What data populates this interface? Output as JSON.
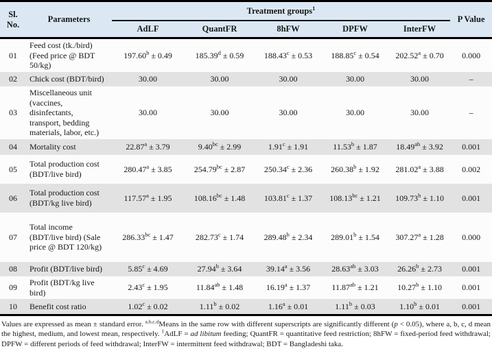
{
  "table": {
    "header": {
      "sl_no": "Sl. No.",
      "parameters": "Parameters",
      "treatment_groups": "Treatment groups^{1}",
      "group_columns": [
        "AdLF",
        "QuantFR",
        "8hFW",
        "DPFW",
        "InterFW"
      ],
      "p_value": "P Value"
    },
    "rows": [
      {
        "no": "01",
        "parameter": "Feed cost (tk./bird) (Feed price @ BDT 50/kg)",
        "values": [
          "197.60^{b} ± 0.49",
          "185.39^{d} ± 0.59",
          "188.43^{c} ± 0.53",
          "188.85^{c} ± 0.54",
          "202.52^{a} ± 0.70"
        ],
        "p": "0.000"
      },
      {
        "no": "02",
        "parameter": "Chick cost (BDT/bird)",
        "values": [
          "30.00",
          "30.00",
          "30.00",
          "30.00",
          "30.00"
        ],
        "p": "–"
      },
      {
        "no": "03",
        "parameter": "Miscellaneous unit (vaccines, disinfectants, transport, bedding materials, labor, etc.)",
        "values": [
          "30.00",
          "30.00",
          "30.00",
          "30.00",
          "30.00"
        ],
        "p": "–"
      },
      {
        "no": "04",
        "parameter": "Mortality cost",
        "values": [
          "22.87^{a} ± 3.79",
          "9.40^{bc} ± 2.99",
          "1.91^{c} ± 1.91",
          "11.53^{b} ± 1.87",
          "18.49^{ab} ± 3.92"
        ],
        "p": "0.001"
      },
      {
        "no": "05",
        "parameter": "Total production cost (BDT/live bird)",
        "values": [
          "280.47^{a} ± 3.85",
          "254.79^{bc} ± 2.87",
          "250.34^{c} ± 2.36",
          "260.38^{b} ± 1.92",
          "281.02^{a} ± 3.88"
        ],
        "p": "0.002"
      },
      {
        "no": "06",
        "parameter": "Total production cost (BDT/kg live bird)",
        "values": [
          "117.57^{a} ± 1.95",
          "108.16^{bc} ± 1.48",
          "103.81^{c} ± 1.37",
          "108.13^{bc} ± 1.21",
          "109.73^{b} ± 1.10"
        ],
        "p": "0.001"
      },
      {
        "no": "07",
        "parameter": "Total income (BDT/live bird) (Sale price @ BDT 120/kg)",
        "values": [
          "286.33^{bc} ± 1.47",
          "282.73^{c} ± 1.74",
          "289.48^{b} ± 2.34",
          "289.01^{b} ± 1.54",
          "307.27^{a} ± 1.28"
        ],
        "p": "0.000"
      },
      {
        "no": "08",
        "parameter": "Profit (BDT/live bird)",
        "values": [
          "5.85^{c} ± 4.69",
          "27.94^{b} ± 3.64",
          "39.14^{a} ± 3.56",
          "28.63^{ab} ± 3.03",
          "26.26^{b} ± 2.73"
        ],
        "p": "0.001"
      },
      {
        "no": "09",
        "parameter": "Profit (BDT/kg live bird)",
        "values": [
          "2.43^{c} ± 1.95",
          "11.84^{ab} ± 1.48",
          "16.19^{a} ± 1.37",
          "11.87^{ab} ± 1.21",
          "10.27^{b} ± 1.10"
        ],
        "p": "0.001"
      },
      {
        "no": "10",
        "parameter": "Benefit cost ratio",
        "values": [
          "1.02^{c} ± 0.02",
          "1.11^{b} ± 0.02",
          "1.16^{a} ± 0.01",
          "1.11^{b} ± 0.03",
          "1.10^{b} ± 0.01"
        ],
        "p": "0.001"
      }
    ]
  },
  "footnote": "Values are expressed as mean ± standard error. ^{a,b,c,d}Means in the same row with different superscripts are significantly different (*p* < 0.05), where a, b, c, d mean the highest, medium, and lowest mean, respectively. ^{1}AdLF = *ad libitum* feeding; QuantFR = quantitative feed restriction; 8hFW = fixed-period feed withdrawal; DPFW = different periods of feed withdrawal; InterFW = intermittent feed withdrawal; BDT = Bangladeshi taka.",
  "colors": {
    "header_bg": "#dbe8f4",
    "shaded_row": "#e2e2e2",
    "border": "#000000"
  }
}
